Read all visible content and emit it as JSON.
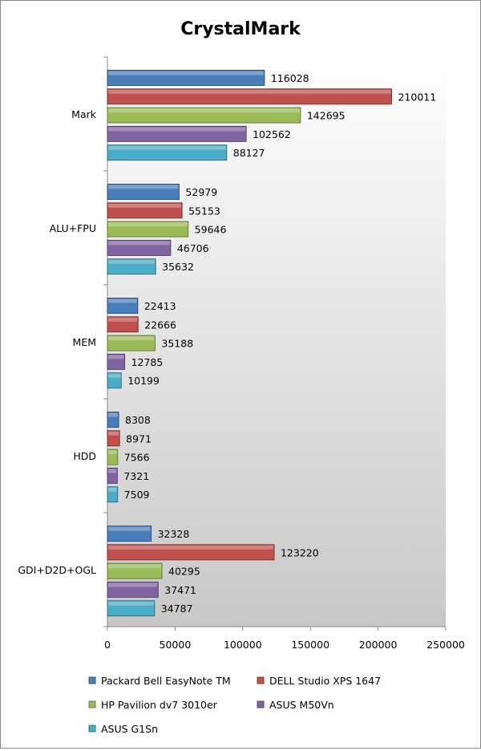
{
  "chart_data": {
    "type": "bar",
    "orientation": "horizontal",
    "title": "CrystalMark",
    "xlabel": "",
    "ylabel": "",
    "xlim": [
      0,
      250000
    ],
    "x_ticks": [
      "0",
      "50000",
      "100000",
      "150000",
      "200000",
      "250000"
    ],
    "x_tick_values": [
      0,
      50000,
      100000,
      150000,
      200000,
      250000
    ],
    "categories": [
      "Mark",
      "ALU+FPU",
      "MEM",
      "HDD",
      "GDI+D2D+OGL"
    ],
    "legend_position": "bottom",
    "grid": false,
    "series": [
      {
        "name": "Packard Bell EasyNote TM",
        "color": "#4a7ebb",
        "values": [
          116028,
          52979,
          22413,
          8308,
          32328
        ]
      },
      {
        "name": "DELL Studio XPS 1647",
        "color": "#c0504d",
        "values": [
          210011,
          55153,
          22666,
          8971,
          123220
        ]
      },
      {
        "name": "HP Pavilion dv7 3010er",
        "color": "#9bbb59",
        "values": [
          142695,
          59646,
          35188,
          7566,
          40295
        ]
      },
      {
        "name": "ASUS M50Vn",
        "color": "#8064a2",
        "values": [
          102562,
          46706,
          12785,
          7321,
          37471
        ]
      },
      {
        "name": "ASUS G1Sn",
        "color": "#4bacc6",
        "values": [
          88127,
          35632,
          10199,
          7509,
          34787
        ]
      }
    ]
  }
}
